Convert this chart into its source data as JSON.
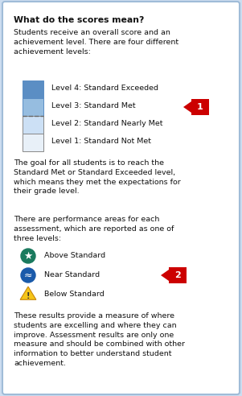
{
  "bg_color": "#ccddf0",
  "panel_color": "#ffffff",
  "border_color": "#a0bcd8",
  "title": "What do the scores mean?",
  "title_fontsize": 7.8,
  "body_fontsize": 6.8,
  "para1": "Students receive an overall score and an\nachievement level. There are four different\nachievement levels:",
  "levels": [
    {
      "label": "Level 4: Standard Exceeded",
      "fill": "#5b8ec4",
      "border": "#5b8ec4"
    },
    {
      "label": "Level 3: Standard Met",
      "fill": "#96bde0",
      "border": "#5b8ec4"
    },
    {
      "label": "Level 2: Standard Nearly Met",
      "fill": "#cce0f5",
      "border": "#888888"
    },
    {
      "label": "Level 1: Standard Not Met",
      "fill": "#e8f0f8",
      "border": "#888888"
    }
  ],
  "para2": "The goal for all students is to reach the\nStandard Met or Standard Exceeded level,\nwhich means they met the expectations for\ntheir grade level.",
  "para3": "There are performance areas for each\nassessment, which are reported as one of\nthree levels:",
  "perf_levels": [
    {
      "label": "Above Standard"
    },
    {
      "label": "Near Standard"
    },
    {
      "label": "Below Standard"
    }
  ],
  "para4": "These results provide a measure of where\nstudents are excelling and where they can\nimprove. Assessment results are only one\nmeasure and should be combined with other\ninformation to better understand student\nachievement.",
  "star_color": "#1a7a5e",
  "near_color": "#1a5aaa",
  "warning_fill": "#f5c518",
  "warning_border": "#c8860a",
  "callout_bg": "#cc0000",
  "callout_text_color": "#ffffff",
  "callout1_label": "1",
  "callout2_label": "2"
}
